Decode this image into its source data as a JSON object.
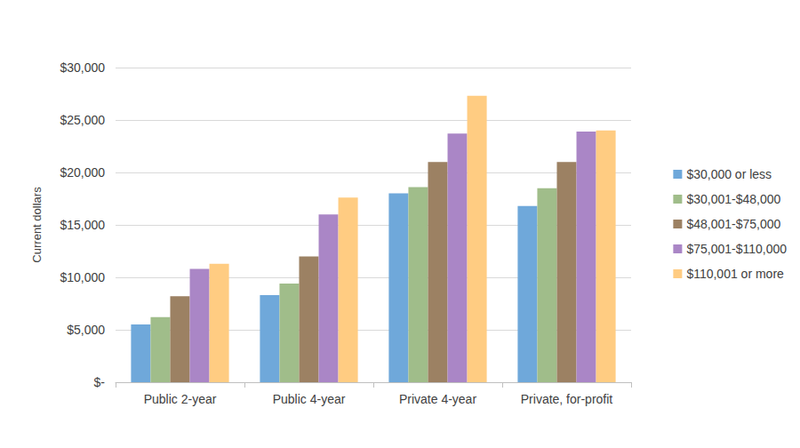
{
  "chart_data": {
    "type": "bar",
    "y_label": "Current dollars",
    "categories": [
      "Public 2-year",
      "Public 4-year",
      "Private 4-year",
      "Private, for-profit"
    ],
    "series": [
      {
        "name": "$30,000 or less",
        "color": "#6fa8da",
        "values": [
          5500,
          8300,
          18000,
          16800
        ]
      },
      {
        "name": "$30,001-$48,000",
        "color": "#a0bd8a",
        "values": [
          6200,
          9400,
          18600,
          18500
        ]
      },
      {
        "name": "$48,001-$75,000",
        "color": "#9c8163",
        "values": [
          8200,
          12000,
          21000,
          21000
        ]
      },
      {
        "name": "$75,001-$110,000",
        "color": "#aa86c6",
        "values": [
          10800,
          16000,
          23700,
          23900
        ]
      },
      {
        "name": "$110,001 or more",
        "color": "#ffcc82",
        "values": [
          11300,
          17600,
          27300,
          24000
        ]
      }
    ],
    "ylim": [
      0,
      30000
    ],
    "yticks": [
      {
        "value": 0,
        "label": "$-"
      },
      {
        "value": 5000,
        "label": "$5,000"
      },
      {
        "value": 10000,
        "label": "$10,000"
      },
      {
        "value": 15000,
        "label": "$15,000"
      },
      {
        "value": 20000,
        "label": "$20,000"
      },
      {
        "value": 25000,
        "label": "$25,000"
      },
      {
        "value": 30000,
        "label": "$30,000"
      }
    ],
    "grid": true,
    "legend": "right"
  }
}
